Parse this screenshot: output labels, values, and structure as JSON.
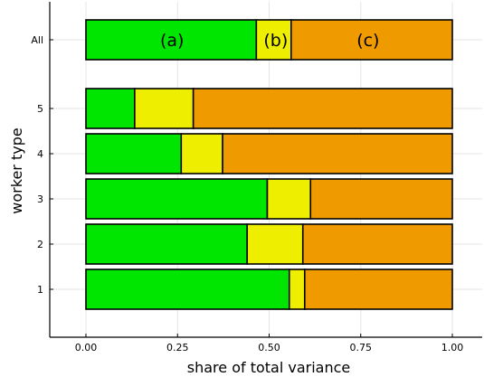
{
  "chart_data": {
    "type": "bar",
    "orientation": "horizontal",
    "stacked": true,
    "title": "",
    "xlabel": "share of total variance",
    "ylabel": "worker type",
    "xlim": [
      -0.1,
      1.08
    ],
    "xticks": [
      0.0,
      0.25,
      0.5,
      0.75,
      1.0
    ],
    "xtick_labels": [
      "0.00",
      "0.25",
      "0.50",
      "0.75",
      "1.00"
    ],
    "grid": true,
    "categories": [
      "1",
      "2",
      "3",
      "4",
      "5",
      "All"
    ],
    "series": [
      {
        "color": "#00e600",
        "values": [
          0.555,
          0.44,
          0.495,
          0.26,
          0.133,
          0.465
        ]
      },
      {
        "color": "#eeee00",
        "values": [
          0.042,
          0.152,
          0.118,
          0.113,
          0.16,
          0.095
        ]
      },
      {
        "color": "#ef9b00",
        "values": [
          0.403,
          0.408,
          0.387,
          0.627,
          0.707,
          0.44
        ]
      }
    ],
    "annotations": [
      {
        "text": "(a)",
        "x": 0.235,
        "category": "All"
      },
      {
        "text": "(b)",
        "x": 0.518,
        "category": "All"
      },
      {
        "text": "(c)",
        "x": 0.77,
        "category": "All"
      }
    ]
  }
}
